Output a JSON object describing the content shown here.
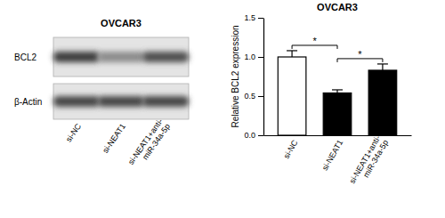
{
  "chart_data": {
    "type": "bar",
    "title": "OVCAR3",
    "y_label": "Relative BCL2 expression",
    "categories": [
      "si-NC",
      "si-NEAT1",
      "si-NEAT1+anti-miR-34a-5p"
    ],
    "values": [
      1.0,
      0.54,
      0.83
    ],
    "errors": [
      0.08,
      0.04,
      0.08
    ],
    "colors": [
      "#ffffff",
      "#000000",
      "#000000"
    ],
    "ylim": [
      0,
      1.5
    ],
    "yticks": [
      {
        "value": 0,
        "label": "0.0"
      },
      {
        "value": 0.5,
        "label": "0.5"
      },
      {
        "value": 1,
        "label": "1.0"
      },
      {
        "value": 1.5,
        "label": "1.5"
      }
    ],
    "grid": false,
    "significance": [
      {
        "label": "*",
        "from": 0,
        "to": 1
      },
      {
        "label": "*",
        "from": 1,
        "to": 2
      }
    ]
  },
  "blot": {
    "title": "OVCAR3",
    "rows": [
      "BCL2",
      "β-Actin"
    ],
    "lanes": [
      "si-NC",
      "si-NEAT1",
      "si-NEAT1+anti-miR-34a-5p"
    ]
  }
}
